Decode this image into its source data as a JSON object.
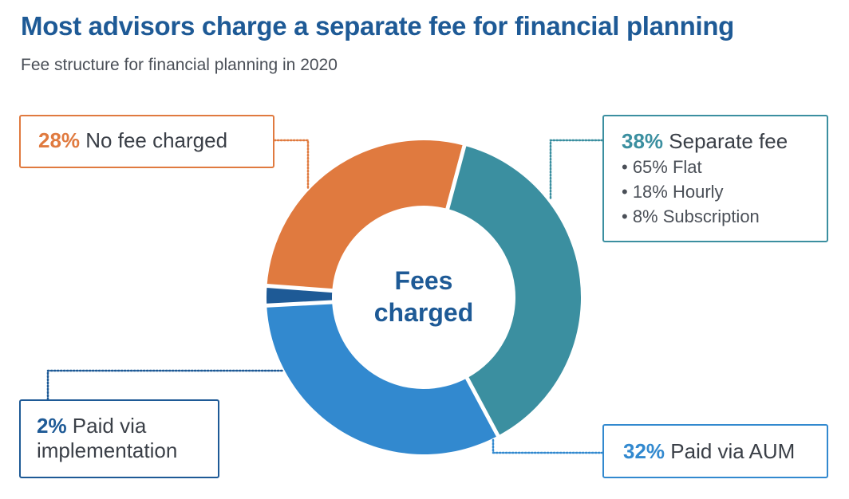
{
  "title": "Most advisors charge a separate fee for financial planning",
  "subtitle": "Fee structure for financial planning in 2020",
  "center_label": [
    "Fees",
    "charged"
  ],
  "colors": {
    "title": "#1e5a96",
    "separate_fee": "#3b8fa0",
    "aum": "#3289cf",
    "implementation": "#1e5a96",
    "no_fee": "#e07a3f"
  },
  "labels": {
    "no_fee": {
      "pct": "28%",
      "text": " No fee charged"
    },
    "separate_fee": {
      "pct": "38%",
      "text": " Separate fee",
      "bullets": [
        "• 65% Flat",
        "• 18% Hourly",
        "• 8% Subscription"
      ]
    },
    "implementation": {
      "pct": "2%",
      "text": " Paid via",
      "text2": "implementation"
    },
    "aum": {
      "pct": "32%",
      "text": " Paid via AUM"
    }
  },
  "chart_data": {
    "type": "pie",
    "style": "donut",
    "title": "Most advisors charge a separate fee for financial planning",
    "subtitle": "Fee structure for financial planning in 2020",
    "categories": [
      "Separate fee",
      "Paid via AUM",
      "Paid via implementation",
      "No fee charged"
    ],
    "values": [
      38,
      32,
      2,
      28
    ],
    "colors": [
      "#3b8fa0",
      "#3289cf",
      "#1e5a96",
      "#e07a3f"
    ],
    "sub_breakdown": {
      "Separate fee": [
        {
          "label": "Flat",
          "value": 65
        },
        {
          "label": "Hourly",
          "value": 18
        },
        {
          "label": "Subscription",
          "value": 8
        }
      ]
    }
  }
}
